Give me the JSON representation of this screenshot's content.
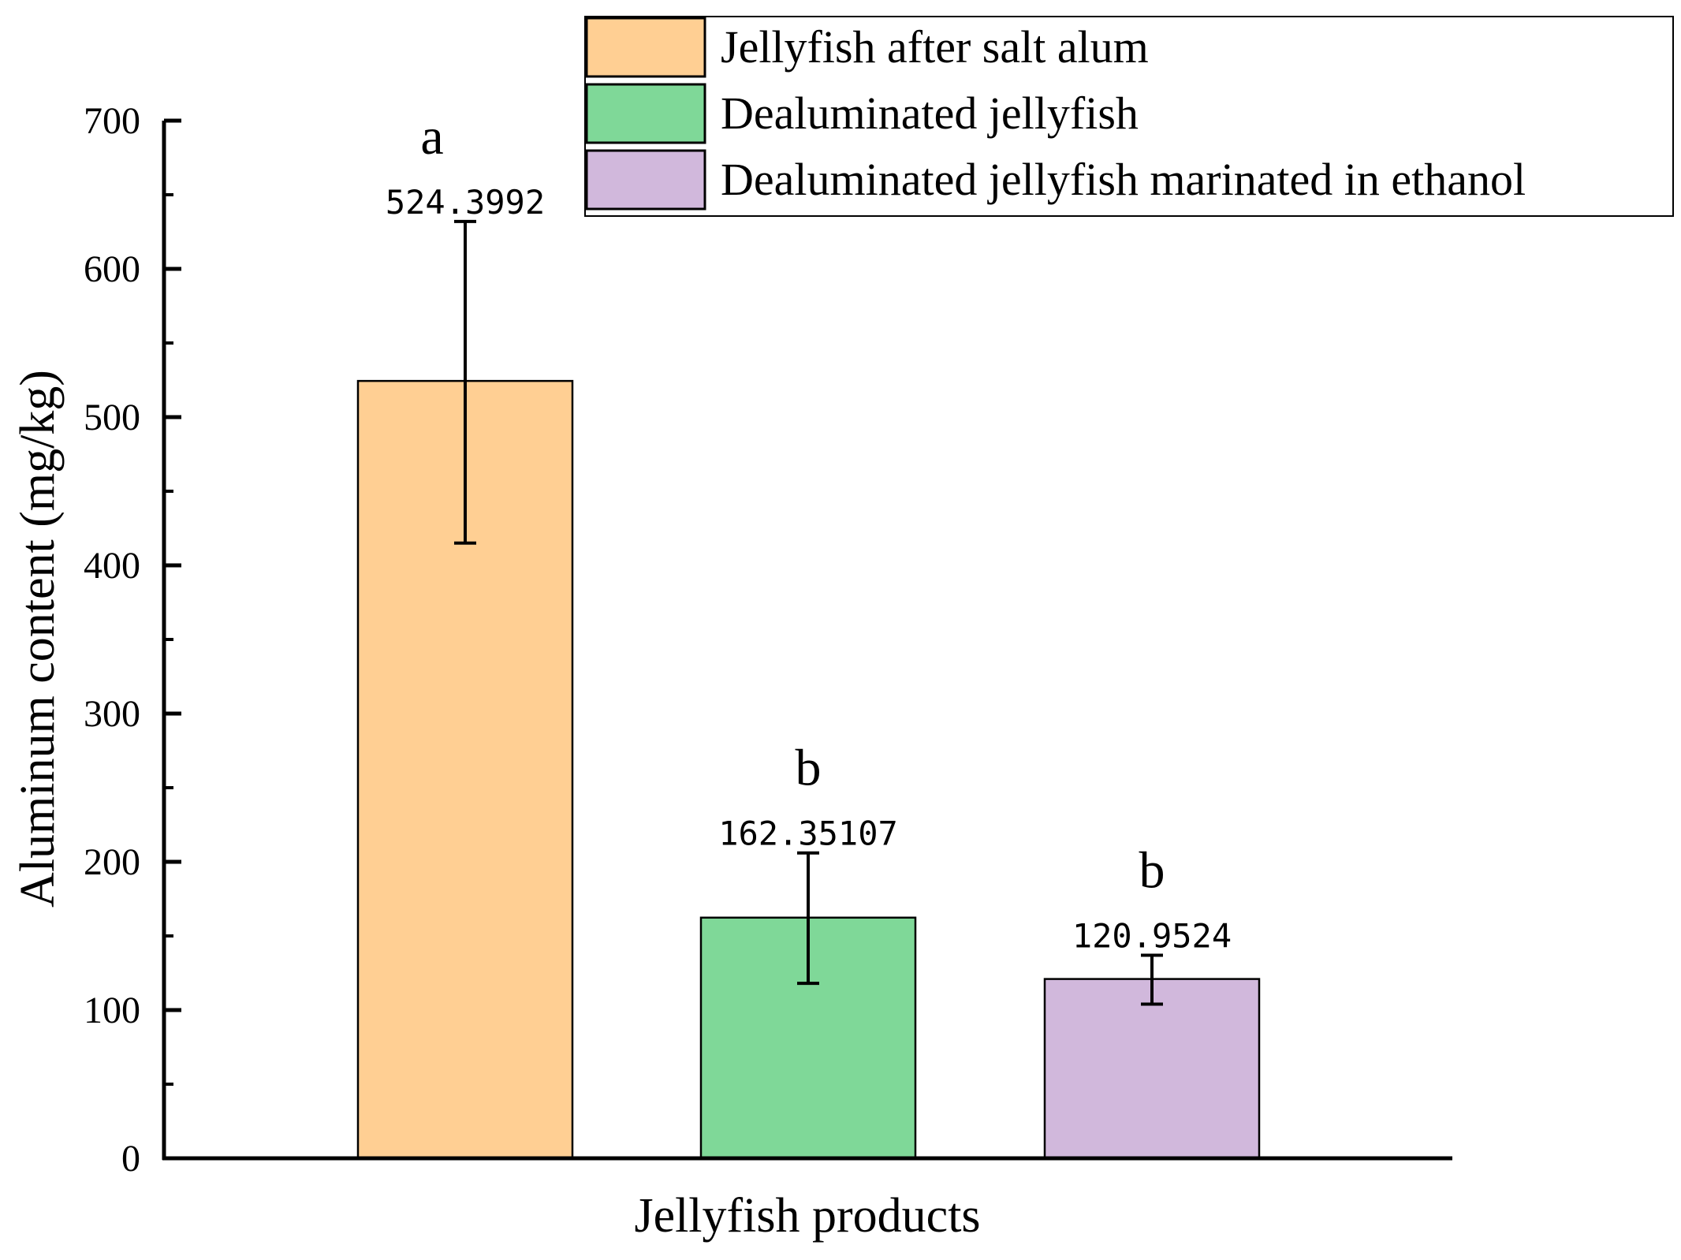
{
  "chart_data": {
    "type": "bar",
    "xlabel": "Jellyfish products",
    "ylabel": "Aluminum content (mg/kg)",
    "ylim": [
      0,
      700
    ],
    "yticks": [
      "0",
      "100",
      "200",
      "300",
      "400",
      "500",
      "600",
      "700"
    ],
    "grid": false,
    "legend_position": "top-right",
    "series": [
      {
        "name": "Jellyfish after salt alum",
        "value": 524.3992,
        "value_label": "524.3992",
        "error_low": 415,
        "error_high": 632,
        "significance": "a",
        "color": "#FFCF93"
      },
      {
        "name": "Dealuminated jellyfish",
        "value": 162.35107,
        "value_label": "162.35107",
        "error_low": 118,
        "error_high": 206,
        "significance": "b",
        "color": "#7FD898"
      },
      {
        "name": "Dealuminated jellyfish marinated in ethanol",
        "value": 120.9524,
        "value_label": "120.9524",
        "error_low": 104,
        "error_high": 137,
        "significance": "b",
        "color": "#D1B8DC"
      }
    ]
  }
}
